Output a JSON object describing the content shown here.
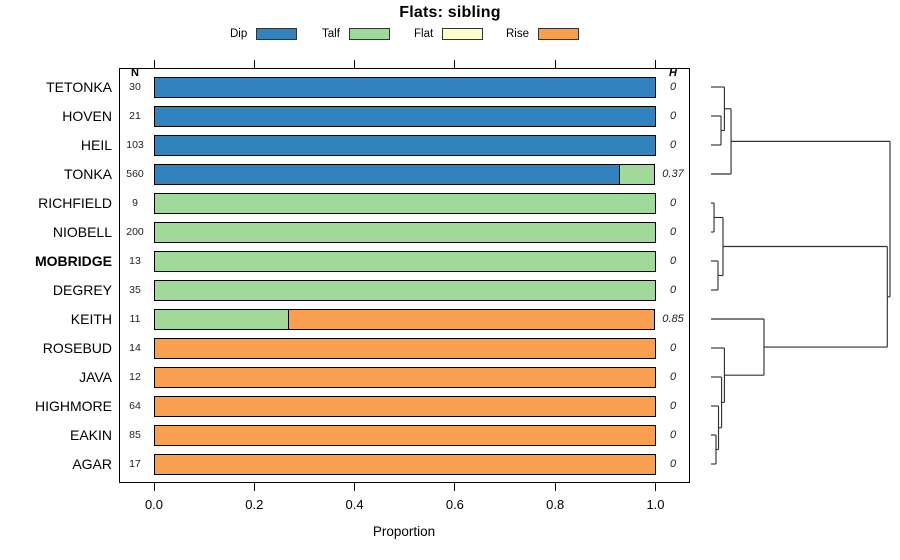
{
  "title": "Flats: sibling",
  "legend": [
    {
      "label": "Dip",
      "color": "#3182bd"
    },
    {
      "label": "Talf",
      "color": "#a1d99b"
    },
    {
      "label": "Flat",
      "color": "#ffffcc"
    },
    {
      "label": "Rise",
      "color": "#f9a050"
    }
  ],
  "columns": {
    "n_header": "N",
    "h_header": "H"
  },
  "axis": {
    "ticks": [
      "0.0",
      "0.2",
      "0.4",
      "0.6",
      "0.8",
      "1.0"
    ],
    "xlabel": "Proportion",
    "xlim": [
      0,
      1
    ]
  },
  "chart_data": {
    "type": "bar",
    "stacked": true,
    "horizontal": true,
    "title": "Flats: sibling",
    "xlabel": "Proportion",
    "xlim": [
      0,
      1
    ],
    "categories": [
      "TETONKA",
      "HOVEN",
      "HEIL",
      "TONKA",
      "RICHFIELD",
      "NIOBELL",
      "MOBRIDGE",
      "DEGREY",
      "KEITH",
      "ROSEBUD",
      "JAVA",
      "HIGHMORE",
      "EAKIN",
      "AGAR"
    ],
    "bold_category": "MOBRIDGE",
    "series": [
      {
        "name": "Dip",
        "color": "#3182bd",
        "values": [
          1,
          1,
          1,
          0.93,
          0,
          0,
          0,
          0,
          0,
          0,
          0,
          0,
          0,
          0
        ]
      },
      {
        "name": "Talf",
        "color": "#a1d99b",
        "values": [
          0,
          0,
          0,
          0.07,
          1,
          1,
          1,
          1,
          0.27,
          0,
          0,
          0,
          0,
          0
        ]
      },
      {
        "name": "Flat",
        "color": "#ffffcc",
        "values": [
          0,
          0,
          0,
          0,
          0,
          0,
          0,
          0,
          0,
          0,
          0,
          0,
          0,
          0
        ]
      },
      {
        "name": "Rise",
        "color": "#f9a050",
        "values": [
          0,
          0,
          0,
          0,
          0,
          0,
          0,
          0,
          0.73,
          1,
          1,
          1,
          1,
          1
        ]
      }
    ],
    "n_values": [
      30,
      21,
      103,
      560,
      9,
      200,
      13,
      35,
      11,
      14,
      12,
      64,
      85,
      17
    ],
    "h_values": [
      "0",
      "0",
      "0",
      "0.37",
      "0",
      "0",
      "0",
      "0",
      "0.85",
      "0",
      "0",
      "0",
      "0",
      "0"
    ]
  },
  "dendrogram": {
    "leaf_order": [
      "TETONKA",
      "HOVEN",
      "HEIL",
      "TONKA",
      "RICHFIELD",
      "NIOBELL",
      "MOBRIDGE",
      "DEGREY",
      "KEITH",
      "ROSEBUD",
      "JAVA",
      "HIGHMORE",
      "EAKIN",
      "AGAR"
    ],
    "merges": [
      {
        "id": "m1",
        "a": "HOVEN",
        "b": "HEIL",
        "h": 0.056
      },
      {
        "id": "m2",
        "a": "TETONKA",
        "b": "m1",
        "h": 0.075
      },
      {
        "id": "m3",
        "a": "m2",
        "b": "TONKA",
        "h": 0.112
      },
      {
        "id": "m4",
        "a": "RICHFIELD",
        "b": "NIOBELL",
        "h": 0.017
      },
      {
        "id": "m5",
        "a": "MOBRIDGE",
        "b": "DEGREY",
        "h": 0.039
      },
      {
        "id": "m6",
        "a": "m4",
        "b": "m5",
        "h": 0.067
      },
      {
        "id": "m7",
        "a": "EAKIN",
        "b": "AGAR",
        "h": 0.028
      },
      {
        "id": "m8",
        "a": "HIGHMORE",
        "b": "m7",
        "h": 0.042
      },
      {
        "id": "m9",
        "a": "JAVA",
        "b": "m8",
        "h": 0.059
      },
      {
        "id": "m10",
        "a": "ROSEBUD",
        "b": "m9",
        "h": 0.075
      },
      {
        "id": "m11",
        "a": "KEITH",
        "b": "m10",
        "h": 0.296
      },
      {
        "id": "m12",
        "a": "m6",
        "b": "m11",
        "h": 0.985
      },
      {
        "id": "m13",
        "a": "m3",
        "b": "m12",
        "h": 1.0
      }
    ]
  }
}
